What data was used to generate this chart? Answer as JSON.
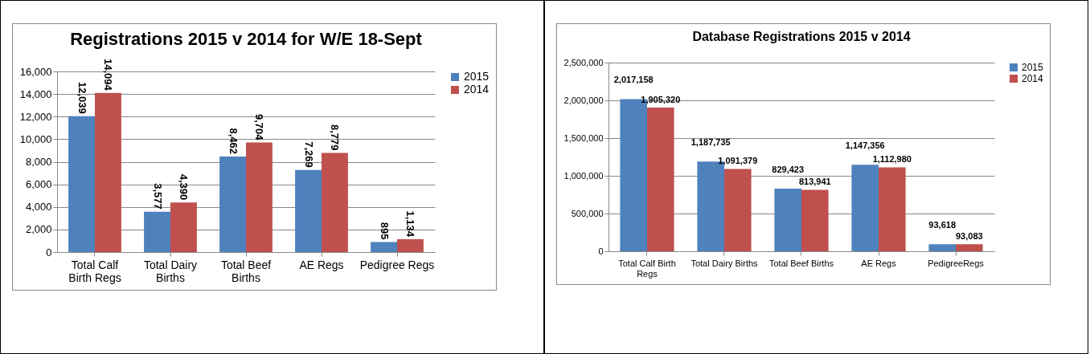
{
  "chart_data": [
    {
      "type": "bar",
      "title": "Registrations 2015 v 2014 for W/E 18-Sept",
      "categories": [
        "Total Calf Birth Regs",
        "Total Dairy Births",
        "Total Beef Births",
        "AE Regs",
        "Pedigree Regs"
      ],
      "series": [
        {
          "name": "2015",
          "color": "#4f81bd",
          "values": [
            12039,
            3577,
            8462,
            7269,
            895
          ],
          "value_labels": [
            "12,039",
            "3,577",
            "8,462",
            "7,269",
            "895"
          ]
        },
        {
          "name": "2014",
          "color": "#c0504d",
          "values": [
            14094,
            4390,
            9704,
            8779,
            1134
          ],
          "value_labels": [
            "14,094",
            "4,390",
            "9,704",
            "8,779",
            "1,134"
          ]
        }
      ],
      "ylim": [
        0,
        16000
      ],
      "yticks": [
        0,
        {
          "value": 2000,
          "label": "2,000"
        },
        {
          "value": 4000,
          "label": "4,000"
        },
        {
          "value": 6000,
          "label": "6,000"
        },
        {
          "value": 8000,
          "label": "8,000"
        },
        {
          "value": 10000,
          "label": "10,000"
        },
        {
          "value": 12000,
          "label": "12,000"
        },
        {
          "value": 14000,
          "label": "14,000"
        },
        {
          "value": 16000,
          "label": "16,000"
        }
      ],
      "grid": "y",
      "legend": "right"
    },
    {
      "type": "bar",
      "title": "Database Registrations 2015 v 2014",
      "categories": [
        "Total Calf Birth Regs",
        "Total Dairy Births",
        "Total Beef Births",
        "AE Regs",
        "PedigreeRegs"
      ],
      "series": [
        {
          "name": "2015",
          "color": "#4f81bd",
          "values": [
            2017158,
            1187735,
            829423,
            1147356,
            93618
          ],
          "value_labels": [
            "2,017,158",
            "1,187,735",
            "829,423",
            "1,147,356",
            "93,618"
          ]
        },
        {
          "name": "2014",
          "color": "#c0504d",
          "values": [
            1905320,
            1091379,
            813941,
            1112980,
            93083
          ],
          "value_labels": [
            "1,905,320",
            "1,091,379",
            "813,941",
            "1,112,980",
            "93,083"
          ]
        }
      ],
      "ylim": [
        0,
        2500000
      ],
      "yticks": [
        0,
        {
          "value": 500000,
          "label": "500,000"
        },
        {
          "value": 1000000,
          "label": "1,000,000"
        },
        {
          "value": 1500000,
          "label": "1,500,000"
        },
        {
          "value": 2000000,
          "label": "2,000,000"
        },
        {
          "value": 2500000,
          "label": "2,500,000"
        }
      ],
      "grid": "y",
      "legend": "right"
    }
  ]
}
